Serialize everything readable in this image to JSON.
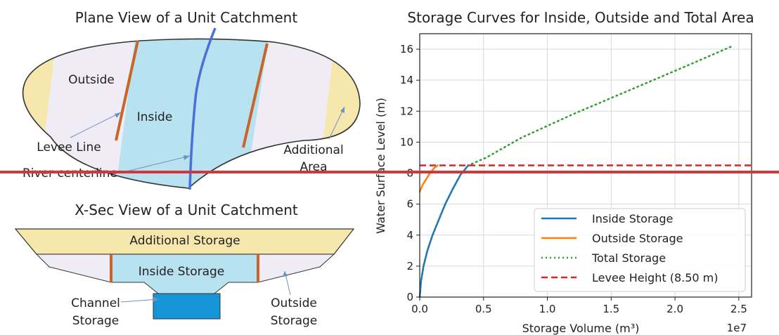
{
  "colors": {
    "inside_fill": "#b8e2f0",
    "outside_fill": "#efecf6",
    "additional_fill": "#f6e8ad",
    "levee": "#c8652a",
    "river": "#4b6fd8",
    "channel_fill": "#1795d9",
    "inside_series": "#1f77b4",
    "outside_series": "#ff7f0e",
    "total_series": "#2ca02c",
    "levee_series": "#d62728",
    "overlay_line": "#d0383c"
  },
  "plane_view": {
    "title": "Plane View of a Unit Catchment",
    "labels": {
      "outside": "Outside",
      "inside": "Inside",
      "levee_line": "Levee Line",
      "river_centerline": "River centerline",
      "additional_line1": "Additional",
      "additional_line2": "Area"
    }
  },
  "xsec_view": {
    "title": "X-Sec View of a Unit Catchment",
    "labels": {
      "additional_storage": "Additional Storage",
      "inside_storage": "Inside Storage",
      "channel_line1": "Channel",
      "channel_line2": "Storage",
      "outside_line1": "Outside",
      "outside_line2": "Storage"
    }
  },
  "chart_data": {
    "type": "line",
    "title": "Storage Curves for Inside, Outside and Total Area",
    "xlabel": "Storage Volume (m³)",
    "ylabel": "Water Surface Level (m)",
    "x_offset_label": "1e7",
    "xlim": [
      0,
      2.6
    ],
    "ylim": [
      0,
      17
    ],
    "x_ticks": [
      0,
      0.5,
      1.0,
      1.5,
      2.0,
      2.5
    ],
    "x_tick_labels": [
      "0.0",
      "0.5",
      "1.0",
      "1.5",
      "2.0",
      "2.5"
    ],
    "y_ticks": [
      0,
      2,
      4,
      6,
      8,
      10,
      12,
      14,
      16
    ],
    "y_tick_labels": [
      "0",
      "2",
      "4",
      "6",
      "8",
      "10",
      "12",
      "14",
      "16"
    ],
    "grid": true,
    "legend_position": "bottom-right",
    "series": [
      {
        "name": "Inside Storage",
        "style": "solid",
        "x": [
          0,
          0.01,
          0.03,
          0.06,
          0.1,
          0.15,
          0.2,
          0.26,
          0.32,
          0.38
        ],
        "y": [
          0,
          1.0,
          2.0,
          3.0,
          4.0,
          5.0,
          6.0,
          7.0,
          7.9,
          8.5
        ]
      },
      {
        "name": "Outside Storage",
        "style": "solid",
        "x": [
          0,
          0.02,
          0.05,
          0.08,
          0.11,
          0.14
        ],
        "y": [
          6.8,
          7.2,
          7.6,
          8.0,
          8.3,
          8.5
        ]
      },
      {
        "name": "Total Storage",
        "style": "dotted",
        "x": [
          0,
          0.01,
          0.03,
          0.06,
          0.1,
          0.15,
          0.2,
          0.26,
          0.32,
          0.38,
          0.52,
          0.8,
          1.2,
          1.6,
          2.0,
          2.45
        ],
        "y": [
          0,
          1.0,
          2.0,
          3.0,
          4.0,
          5.0,
          6.0,
          7.0,
          7.9,
          8.5,
          9.0,
          10.3,
          11.8,
          13.2,
          14.6,
          16.2
        ]
      },
      {
        "name": "Levee Height (8.50 m)",
        "style": "dashed",
        "x": [
          0,
          2.6
        ],
        "y": [
          8.5,
          8.5
        ]
      }
    ]
  }
}
